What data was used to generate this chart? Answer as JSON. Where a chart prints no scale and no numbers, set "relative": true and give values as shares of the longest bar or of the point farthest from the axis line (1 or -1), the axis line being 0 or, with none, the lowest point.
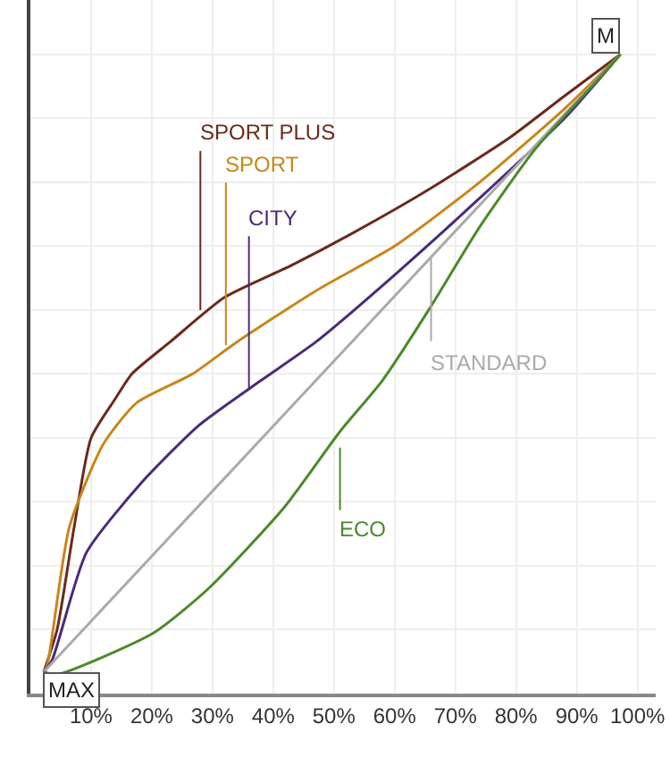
{
  "chart_data": {
    "type": "line",
    "relative": true,
    "xlim": [
      0,
      103
    ],
    "xticks": [
      {
        "value": 10,
        "label": "10%"
      },
      {
        "value": 20,
        "label": "20%"
      },
      {
        "value": 30,
        "label": "30%"
      },
      {
        "value": 40,
        "label": "40%"
      },
      {
        "value": 50,
        "label": "50%"
      },
      {
        "value": 60,
        "label": "60%"
      },
      {
        "value": 70,
        "label": "70%"
      },
      {
        "value": 80,
        "label": "80%"
      },
      {
        "value": 90,
        "label": "90%"
      },
      {
        "value": 100,
        "label": "100%"
      }
    ],
    "tick_labels": "x",
    "grid": true,
    "marker": "none",
    "line_style": "solid",
    "series": [
      {
        "color": "#6b2a1a",
        "x": [
          2.2,
          4.4,
          7.2,
          10,
          13.9,
          16.7,
          23,
          32,
          43,
          53,
          65,
          79,
          88,
          97.2
        ],
        "values": [
          0.034,
          0.1,
          0.26,
          0.4,
          0.46,
          0.5,
          0.55,
          0.62,
          0.67,
          0.72,
          0.785,
          0.87,
          0.935,
          1.0
        ]
      },
      {
        "color": "#c8861a",
        "x": [
          2.2,
          2.8,
          6.4,
          12,
          17.5,
          26.7,
          34,
          47,
          60,
          74,
          88,
          97.2
        ],
        "values": [
          0.034,
          0.045,
          0.26,
          0.39,
          0.455,
          0.5,
          0.55,
          0.63,
          0.7,
          0.8,
          0.915,
          1.0
        ]
      },
      {
        "color": "#4b2a7a",
        "x": [
          2.2,
          3.6,
          9.2,
          18.3,
          27.8,
          38,
          47,
          60,
          74,
          88,
          97.2
        ],
        "values": [
          0.034,
          0.053,
          0.22,
          0.33,
          0.42,
          0.49,
          0.55,
          0.655,
          0.775,
          0.9,
          1.0
        ]
      },
      {
        "color": "#aaaaaa",
        "x": [
          2.2,
          49,
          97.2
        ],
        "values": [
          0.034,
          0.51,
          1.0
        ]
      },
      {
        "color": "#4a8a2a",
        "x": [
          2.2,
          4.4,
          20.3,
          29.4,
          41.7,
          51,
          58,
          65.6,
          74,
          83,
          92.5,
          97.2
        ],
        "values": [
          0.034,
          0.03,
          0.095,
          0.165,
          0.29,
          0.41,
          0.49,
          0.6,
          0.73,
          0.85,
          0.95,
          1.0
        ]
      }
    ],
    "annotations": [
      {
        "text": "SPORT PLUS",
        "x": 28,
        "y": 0.6
      },
      {
        "text": "SPORT",
        "x": 32.2,
        "y": 0.545
      },
      {
        "text": "CITY",
        "x": 36,
        "y": 0.475
      },
      {
        "text": "STANDARD",
        "x": 66,
        "y": 0.68
      },
      {
        "text": "ECO",
        "x": 51,
        "y": 0.41
      },
      {
        "text": "MAX",
        "x": 2.2,
        "y": 0.034
      },
      {
        "text": "M",
        "x": 97.2,
        "y": 1.0
      }
    ]
  }
}
